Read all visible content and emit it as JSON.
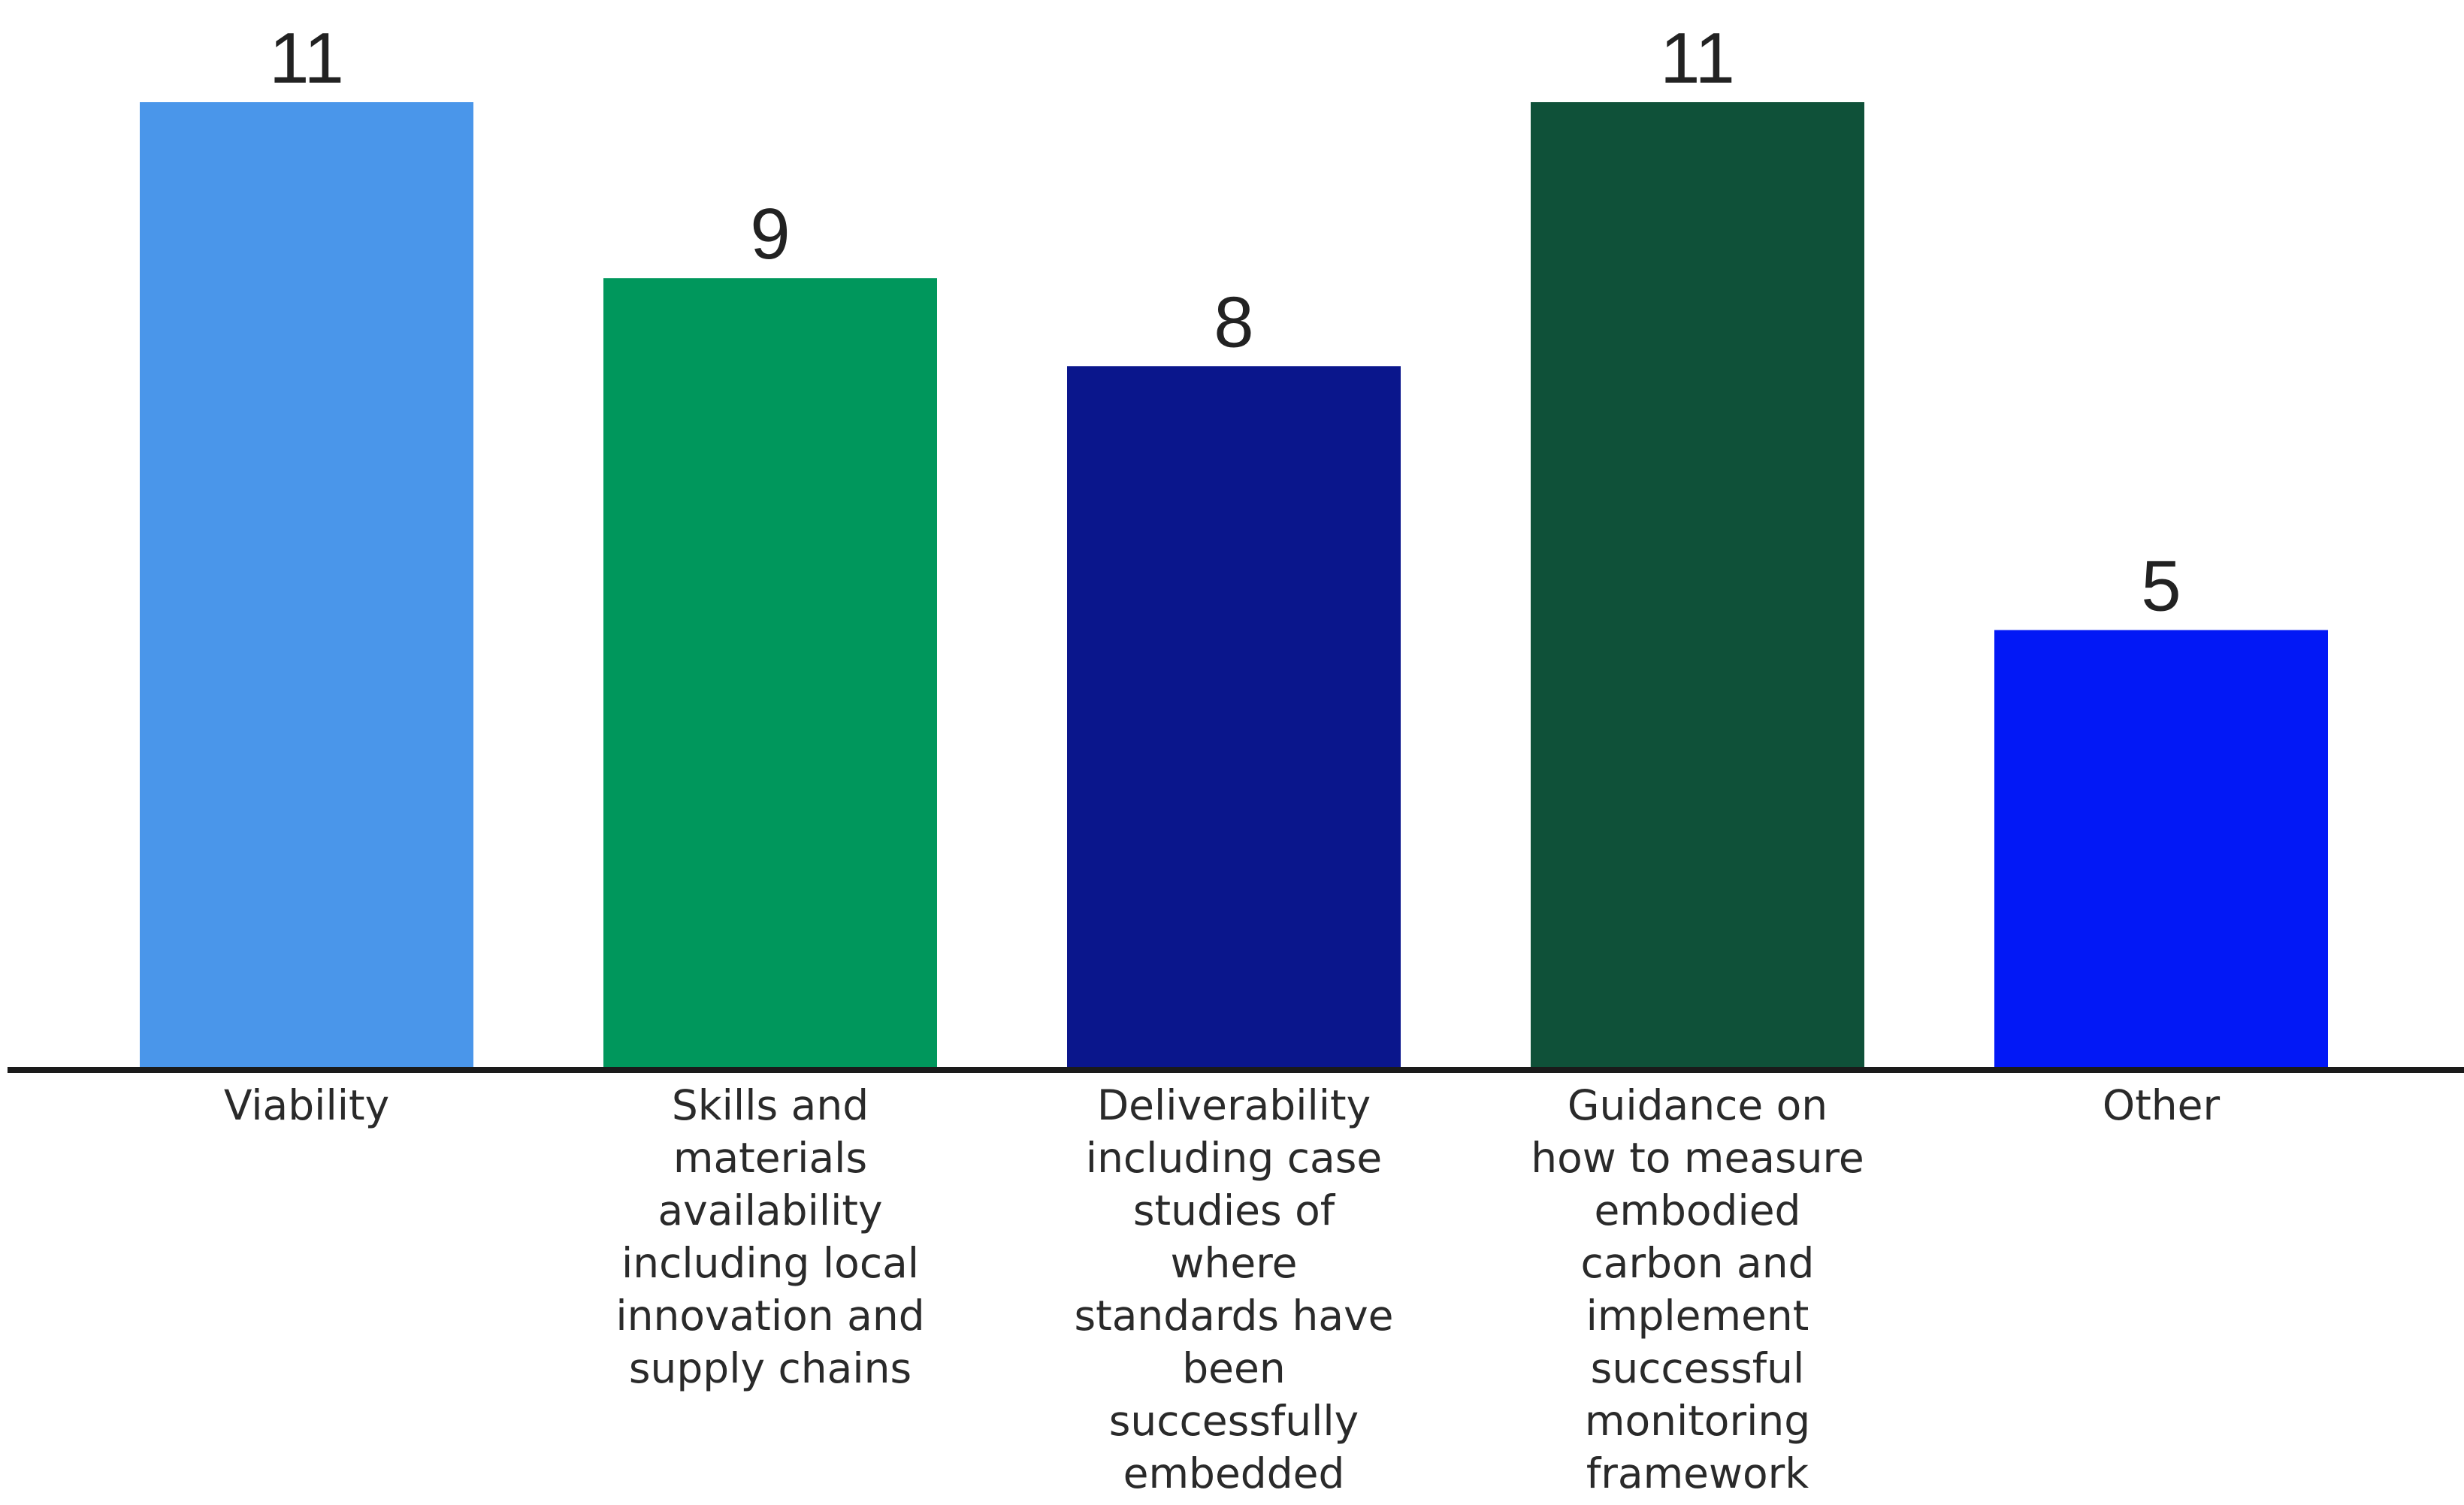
{
  "chart_data": {
    "type": "bar",
    "title": "",
    "xlabel": "",
    "ylabel": "",
    "ylim": [
      0,
      11
    ],
    "grid": false,
    "legend": "none",
    "categories": [
      "Viability",
      "Skills and materials availability including local innovation and supply chains",
      "Deliverability including case studies of where standards have been successfully embedded",
      "Guidance on how to measure embodied carbon and implement successful monitoring framework",
      "Other"
    ],
    "category_lines": [
      [
        "Viability"
      ],
      [
        "Skills and",
        "materials",
        "availability",
        "including local",
        "innovation and",
        "supply chains"
      ],
      [
        "Deliverability",
        "including case",
        "studies of",
        "where",
        "standards have",
        "been",
        "successfully",
        "embedded"
      ],
      [
        "Guidance on",
        "how to measure",
        "embodied",
        "carbon and",
        "implement",
        "successful",
        "monitoring",
        "framework"
      ],
      [
        "Other"
      ]
    ],
    "values": [
      11,
      9,
      8,
      11,
      5
    ],
    "data_labels": [
      "11",
      "9",
      "8",
      "11",
      "5"
    ],
    "colors": [
      "#4a96ea",
      "#00975c",
      "#0a168c",
      "#0f5139",
      "#0218f6"
    ],
    "axis_color": "#1a1a1a"
  }
}
